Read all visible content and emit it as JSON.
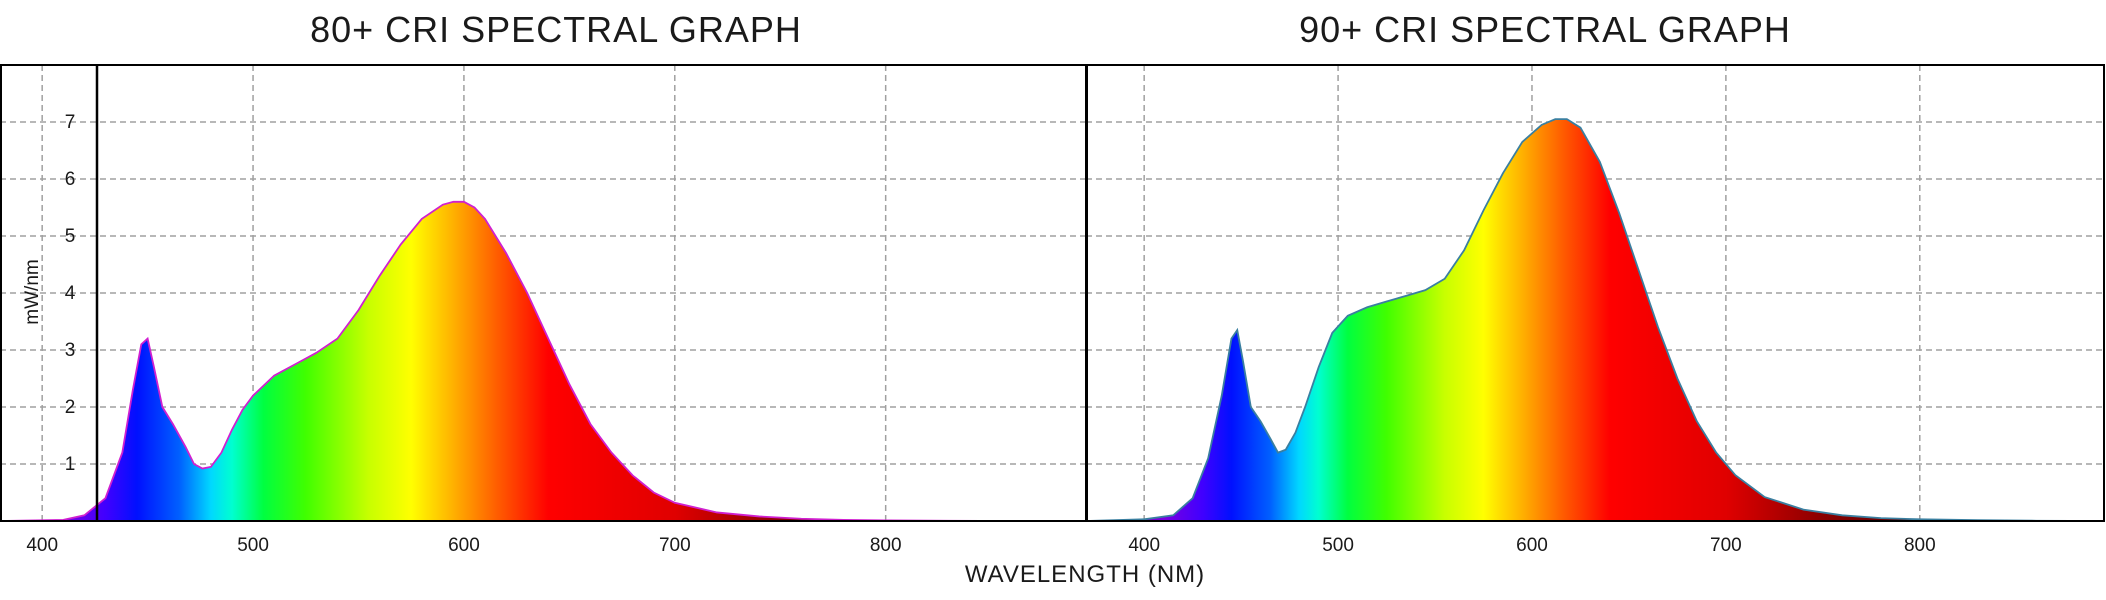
{
  "chart_data": [
    {
      "type": "area",
      "title": "80+ CRI SPECTRAL GRAPH",
      "xlabel": "WAVELENGTH (NM)",
      "ylabel": "mW/nm",
      "xlim": [
        380,
        895
      ],
      "ylim": [
        0,
        8
      ],
      "xticks": [
        400,
        500,
        600,
        700,
        800
      ],
      "yticks": [
        1,
        2,
        3,
        4,
        5,
        6,
        7
      ],
      "grid": true,
      "outline_color": "#d020d0",
      "fill": "visible-spectrum gradient",
      "x": [
        380,
        410,
        420,
        430,
        438,
        443,
        447,
        450,
        453,
        457,
        462,
        468,
        472,
        476,
        480,
        485,
        490,
        495,
        500,
        510,
        520,
        530,
        540,
        550,
        560,
        570,
        580,
        590,
        595,
        600,
        605,
        610,
        620,
        630,
        640,
        650,
        660,
        670,
        680,
        690,
        700,
        720,
        740,
        760,
        780,
        800,
        830,
        860,
        895
      ],
      "y": [
        0.0,
        0.02,
        0.1,
        0.4,
        1.2,
        2.3,
        3.1,
        3.2,
        2.7,
        2.0,
        1.7,
        1.3,
        1.0,
        0.92,
        0.95,
        1.2,
        1.6,
        1.95,
        2.2,
        2.55,
        2.75,
        2.95,
        3.2,
        3.7,
        4.3,
        4.85,
        5.3,
        5.55,
        5.6,
        5.6,
        5.5,
        5.3,
        4.7,
        4.0,
        3.2,
        2.4,
        1.7,
        1.2,
        0.8,
        0.5,
        0.32,
        0.15,
        0.08,
        0.04,
        0.02,
        0.01,
        0.005,
        0.0,
        0.0
      ]
    },
    {
      "type": "area",
      "title": "90+ CRI SPECTRAL GRAPH",
      "xlabel": "WAVELENGTH (NM)",
      "ylabel": "",
      "xlim": [
        370,
        895
      ],
      "ylim": [
        0,
        8
      ],
      "xticks": [
        400,
        500,
        600,
        700,
        800
      ],
      "yticks": [
        1,
        2,
        3,
        4,
        5,
        6,
        7
      ],
      "grid": true,
      "outline_color": "#3a7fa0",
      "fill": "visible-spectrum gradient",
      "x": [
        370,
        400,
        415,
        425,
        433,
        440,
        445,
        448,
        451,
        455,
        460,
        465,
        469,
        473,
        478,
        483,
        490,
        497,
        505,
        515,
        525,
        535,
        545,
        555,
        565,
        575,
        585,
        595,
        605,
        612,
        618,
        625,
        635,
        645,
        655,
        665,
        675,
        685,
        695,
        705,
        720,
        740,
        760,
        780,
        800,
        830,
        860,
        895
      ],
      "y": [
        0.0,
        0.03,
        0.1,
        0.4,
        1.1,
        2.2,
        3.2,
        3.35,
        2.8,
        2.0,
        1.75,
        1.45,
        1.2,
        1.25,
        1.55,
        2.0,
        2.7,
        3.3,
        3.6,
        3.75,
        3.85,
        3.95,
        4.05,
        4.25,
        4.75,
        5.45,
        6.1,
        6.65,
        6.95,
        7.05,
        7.05,
        6.9,
        6.3,
        5.4,
        4.4,
        3.4,
        2.5,
        1.75,
        1.2,
        0.8,
        0.42,
        0.2,
        0.1,
        0.05,
        0.03,
        0.015,
        0.005,
        0.0
      ]
    }
  ]
}
